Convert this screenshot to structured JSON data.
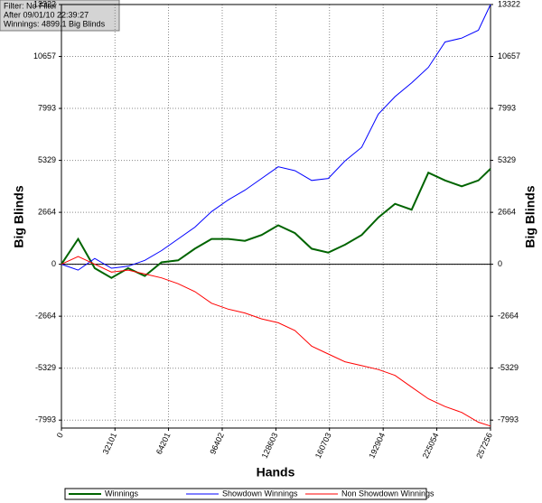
{
  "chart_data": {
    "type": "line",
    "annotations": [
      "Filter: No Filter",
      "After 09/01/10 22:39:27",
      "Winnings: 4899.1 Big Blinds"
    ],
    "xlabel": "Hands",
    "ylabel": "Big Blinds",
    "y2label": "Big Blinds",
    "x": [
      0,
      10000,
      20000,
      30000,
      40000,
      50000,
      60000,
      70000,
      80000,
      90000,
      100000,
      110000,
      120000,
      130000,
      140000,
      150000,
      160000,
      170000,
      180000,
      190000,
      200000,
      210000,
      220000,
      230000,
      240000,
      250000,
      257256
    ],
    "series": [
      {
        "name": "Winnings",
        "color": "#006400",
        "values": [
          0,
          1300,
          -200,
          -700,
          -200,
          -600,
          100,
          200,
          800,
          1300,
          1300,
          1200,
          1500,
          2000,
          1600,
          800,
          600,
          1000,
          1500,
          2400,
          3100,
          2800,
          4700,
          4300,
          4000,
          4300,
          4899
        ]
      },
      {
        "name": "Showdown Winnings",
        "color": "#0000ff",
        "values": [
          0,
          -300,
          300,
          -200,
          -100,
          200,
          700,
          1300,
          1900,
          2700,
          3300,
          3800,
          4400,
          5000,
          4800,
          4300,
          4400,
          5300,
          6000,
          7700,
          8600,
          9300,
          10100,
          11400,
          11600,
          12000,
          13322
        ]
      },
      {
        "name": "Non Showdown Winnings",
        "color": "#ff0000",
        "values": [
          0,
          400,
          0,
          -400,
          -300,
          -500,
          -700,
          -1000,
          -1400,
          -2000,
          -2300,
          -2500,
          -2800,
          -3000,
          -3400,
          -4200,
          -4600,
          -5000,
          -5200,
          -5400,
          -5700,
          -6300,
          -6900,
          -7300,
          -7600,
          -8100,
          -8300
        ]
      }
    ],
    "xlim": [
      0,
      257256
    ],
    "xticks": [
      0,
      32101,
      64201,
      96402,
      128603,
      160703,
      192904,
      225054,
      257256
    ],
    "ylim": [
      -8400,
      13322
    ],
    "yticks": [
      -7993,
      -5329,
      -2664,
      0,
      2664,
      5329,
      7993,
      10657,
      13322
    ],
    "y2lim": [
      -8400,
      13322
    ],
    "y2ticks": [
      -7993,
      -5329,
      -2664,
      0,
      2664,
      5329,
      7993,
      10657,
      13322
    ],
    "grid": true,
    "zero_line": true,
    "legend": "bottom"
  }
}
